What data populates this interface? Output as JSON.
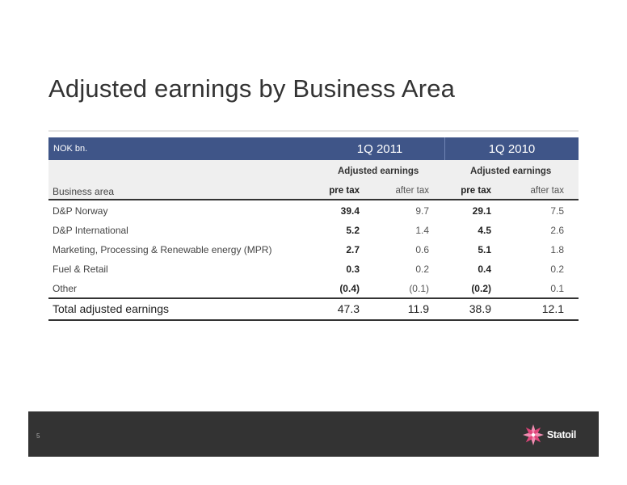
{
  "title": "Adjusted earnings by Business Area",
  "table": {
    "unit": "NOK bn.",
    "periods": [
      "1Q 2011",
      "1Q 2010"
    ],
    "group_label": "Adjusted earnings",
    "business_area_label": "Business area",
    "col_pre": "pre tax",
    "col_after": "after tax",
    "rows": [
      {
        "name": "D&P Norway",
        "v": [
          "39.4",
          "9.7",
          "29.1",
          "7.5"
        ]
      },
      {
        "name": "D&P International",
        "v": [
          "5.2",
          "1.4",
          "4.5",
          "2.6"
        ]
      },
      {
        "name": "Marketing, Processing & Renewable energy (MPR)",
        "v": [
          "2.7",
          "0.6",
          "5.1",
          "1.8"
        ]
      },
      {
        "name": "Fuel & Retail",
        "v": [
          "0.3",
          "0.2",
          "0.4",
          "0.2"
        ]
      },
      {
        "name": "Other",
        "v": [
          "(0.4)",
          "(0.1)",
          "(0.2)",
          "0.1"
        ]
      }
    ],
    "total": {
      "name": "Total adjusted earnings",
      "v": [
        "47.3",
        "11.9",
        "38.9",
        "12.1"
      ]
    }
  },
  "footer": {
    "page_number": "5",
    "logo_text": "Statoil",
    "logo_color": "#e0457b"
  }
}
